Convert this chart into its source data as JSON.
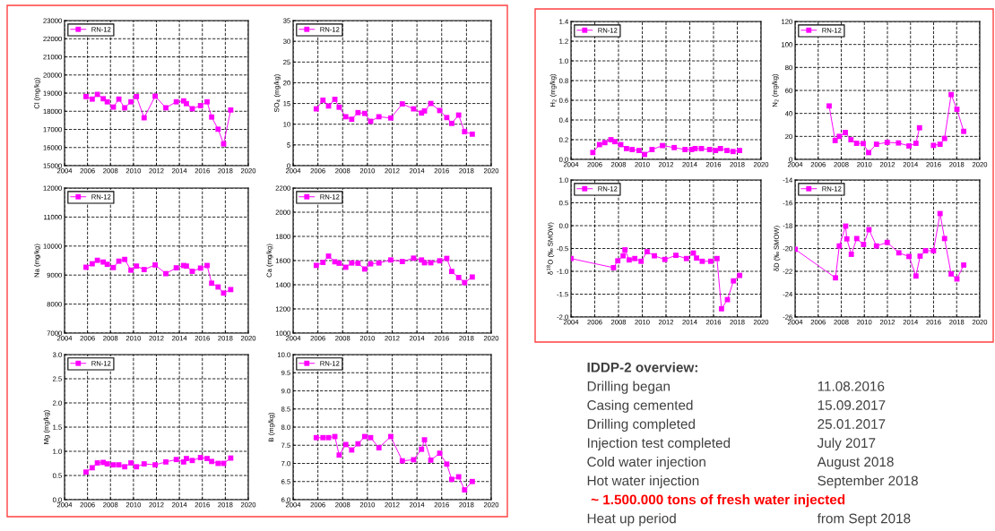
{
  "chart_data": [
    {
      "type": "line",
      "ylabel": "Cl (mg/kg)",
      "x": [
        2005.87,
        2006.41,
        2006.86,
        2007.37,
        2007.72,
        2008.25,
        2008.73,
        2009.24,
        2009.78,
        2010.26,
        2010.93,
        2011.89,
        2012.82,
        2013.73,
        2014.37,
        2014.61,
        2015.12,
        2015.84,
        2016.41,
        2016.81,
        2017.37,
        2017.85,
        2018.47
      ],
      "xlim": [
        2004,
        2020
      ],
      "xticks": [
        2004,
        2006,
        2008,
        2010,
        2012,
        2014,
        2016,
        2018,
        2020
      ],
      "ylim": [
        15000,
        23000
      ],
      "yticks": [
        15000,
        16000,
        17000,
        18000,
        19000,
        20000,
        21000,
        22000,
        23000
      ],
      "grid": true,
      "legend": "top left",
      "marker": "square",
      "series": [
        {
          "name": "RN-12",
          "color": "#ff00ff",
          "values": [
            18810,
            18670,
            18930,
            18690,
            18520,
            18230,
            18670,
            18190,
            18520,
            18810,
            17640,
            18830,
            18190,
            18520,
            18570,
            18420,
            18140,
            18310,
            18520,
            17680,
            17010,
            16200,
            18070
          ]
        }
      ]
    },
    {
      "type": "line",
      "ylabel": "SO$_{4}$ (mg/kg)",
      "x": [
        2005.87,
        2006.41,
        2006.86,
        2007.37,
        2007.72,
        2008.25,
        2008.73,
        2009.24,
        2009.78,
        2010.26,
        2010.93,
        2011.89,
        2012.82,
        2013.73,
        2014.37,
        2014.61,
        2015.12,
        2015.84,
        2016.41,
        2016.81,
        2017.37,
        2017.85,
        2018.47
      ],
      "xlim": [
        2004,
        2020
      ],
      "xticks": [
        2004,
        2006,
        2008,
        2010,
        2012,
        2014,
        2016,
        2018,
        2020
      ],
      "ylim": [
        0,
        35
      ],
      "yticks": [
        0,
        5,
        10,
        15,
        20,
        25,
        30,
        35
      ],
      "grid": true,
      "legend": "top left",
      "marker": "square",
      "series": [
        {
          "name": "RN-12",
          "color": "#ff00ff",
          "values": [
            13.7,
            15.8,
            14.4,
            16.0,
            14.1,
            11.8,
            11.2,
            12.8,
            12.6,
            10.7,
            11.8,
            11.5,
            14.9,
            13.7,
            12.7,
            13.2,
            15.0,
            13.3,
            11.6,
            10.2,
            12.2,
            8.2,
            7.6
          ]
        }
      ]
    },
    {
      "type": "line",
      "ylabel": "Na (mg/kg)",
      "x": [
        2005.87,
        2006.41,
        2006.86,
        2007.37,
        2007.72,
        2008.25,
        2008.73,
        2009.24,
        2009.78,
        2010.26,
        2010.93,
        2011.89,
        2012.82,
        2013.73,
        2014.37,
        2014.61,
        2015.12,
        2015.84,
        2016.41,
        2016.81,
        2017.37,
        2017.85,
        2018.47
      ],
      "xlim": [
        2004,
        2020
      ],
      "xticks": [
        2004,
        2006,
        2008,
        2010,
        2012,
        2014,
        2016,
        2018,
        2020
      ],
      "ylim": [
        7000,
        12000
      ],
      "yticks": [
        7000,
        8000,
        9000,
        10000,
        11000,
        12000
      ],
      "grid": true,
      "legend": "top left",
      "marker": "square",
      "series": [
        {
          "name": "RN-12",
          "color": "#ff00ff",
          "values": [
            9270,
            9390,
            9510,
            9450,
            9370,
            9260,
            9480,
            9540,
            9170,
            9310,
            9190,
            9350,
            9050,
            9250,
            9330,
            9310,
            9130,
            9240,
            9330,
            8720,
            8590,
            8380,
            8500
          ]
        }
      ]
    },
    {
      "type": "line",
      "ylabel": "Ca (mg/kg)",
      "x": [
        2005.87,
        2006.41,
        2006.86,
        2007.37,
        2007.72,
        2008.25,
        2008.73,
        2009.24,
        2009.78,
        2010.26,
        2010.93,
        2011.89,
        2012.82,
        2013.73,
        2014.37,
        2014.61,
        2015.12,
        2015.84,
        2016.41,
        2016.81,
        2017.37,
        2017.85,
        2018.47
      ],
      "xlim": [
        2004,
        2020
      ],
      "xticks": [
        2004,
        2006,
        2008,
        2010,
        2012,
        2014,
        2016,
        2018,
        2020
      ],
      "ylim": [
        1000,
        2200
      ],
      "yticks": [
        1000,
        1200,
        1400,
        1600,
        1800,
        2000,
        2200
      ],
      "grid": true,
      "legend": "top left",
      "marker": "square",
      "series": [
        {
          "name": "RN-12",
          "color": "#ff00ff",
          "values": [
            1560,
            1585,
            1637,
            1590,
            1578,
            1545,
            1580,
            1578,
            1530,
            1573,
            1580,
            1605,
            1592,
            1620,
            1605,
            1582,
            1582,
            1598,
            1618,
            1510,
            1460,
            1418,
            1464
          ]
        }
      ]
    },
    {
      "type": "line",
      "ylabel": "Mg (mg/kg)",
      "x": [
        2005.87,
        2006.41,
        2006.86,
        2007.37,
        2007.72,
        2008.25,
        2008.73,
        2009.24,
        2009.78,
        2010.26,
        2010.93,
        2011.89,
        2012.82,
        2013.73,
        2014.37,
        2014.61,
        2015.12,
        2015.84,
        2016.41,
        2016.81,
        2017.37,
        2017.85,
        2018.47
      ],
      "xlim": [
        2004,
        2020
      ],
      "xticks": [
        2004,
        2006,
        2008,
        2010,
        2012,
        2014,
        2016,
        2018,
        2020
      ],
      "ylim": [
        0,
        3
      ],
      "yticks": [
        {
          "value": 0,
          "label": "0.0"
        },
        {
          "value": 0.5,
          "label": "0.5"
        },
        {
          "value": 1,
          "label": "1.0"
        },
        {
          "value": 1.5,
          "label": "1.5"
        },
        {
          "value": 2,
          "label": "2.0"
        },
        {
          "value": 2.5,
          "label": "2.5"
        },
        {
          "value": 3,
          "label": "3.0"
        }
      ],
      "grid": true,
      "legend": "top left",
      "marker": "square",
      "series": [
        {
          "name": "RN-12",
          "color": "#ff00ff",
          "values": [
            0.57,
            0.66,
            0.76,
            0.77,
            0.74,
            0.72,
            0.72,
            0.68,
            0.76,
            0.68,
            0.74,
            0.72,
            0.78,
            0.83,
            0.78,
            0.85,
            0.81,
            0.87,
            0.85,
            0.79,
            0.75,
            0.75,
            0.86
          ]
        }
      ]
    },
    {
      "type": "line",
      "ylabel": "B (mg/kg)",
      "x": [
        2005.87,
        2006.41,
        2006.86,
        2007.37,
        2007.72,
        2008.25,
        2008.73,
        2009.24,
        2009.78,
        2010.26,
        2010.93,
        2011.89,
        2012.82,
        2013.73,
        2014.37,
        2014.61,
        2015.12,
        2015.84,
        2016.41,
        2016.81,
        2017.37,
        2017.85,
        2018.47
      ],
      "xlim": [
        2004,
        2020
      ],
      "xticks": [
        2004,
        2006,
        2008,
        2010,
        2012,
        2014,
        2016,
        2018,
        2020
      ],
      "ylim": [
        6,
        10
      ],
      "yticks": [
        {
          "value": 6,
          "label": "6.0"
        },
        {
          "value": 6.5,
          "label": "6.5"
        },
        {
          "value": 7,
          "label": "7.0"
        },
        {
          "value": 7.5,
          "label": "7.5"
        },
        {
          "value": 8,
          "label": "8.0"
        },
        {
          "value": 8.5,
          "label": "8.5"
        },
        {
          "value": 9,
          "label": "9.0"
        },
        {
          "value": 9.5,
          "label": "9.5"
        },
        {
          "value": 10,
          "label": "10.0"
        }
      ],
      "grid": true,
      "legend": "top left",
      "marker": "square",
      "series": [
        {
          "name": "RN-12",
          "color": "#ff00ff",
          "values": [
            7.71,
            7.71,
            7.71,
            7.74,
            7.23,
            7.52,
            7.37,
            7.54,
            7.74,
            7.71,
            7.43,
            7.74,
            7.07,
            7.1,
            7.39,
            7.65,
            7.09,
            7.28,
            6.98,
            6.56,
            6.63,
            6.27,
            6.5
          ]
        }
      ]
    },
    {
      "type": "line",
      "ylabel": "H$_{2}$ (mg/kg)",
      "xlim": [
        2004,
        2020
      ],
      "xticks": [
        2004,
        2006,
        2008,
        2010,
        2012,
        2014,
        2016,
        2018,
        2020
      ],
      "ylim": [
        0,
        1.4
      ],
      "yticks": [
        {
          "value": 0,
          "label": "0.0"
        },
        {
          "value": 0.2,
          "label": "0.2"
        },
        {
          "value": 0.4,
          "label": "0.4"
        },
        {
          "value": 0.6,
          "label": "0.6"
        },
        {
          "value": 0.8,
          "label": "0.8"
        },
        {
          "value": 1,
          "label": "1.0"
        },
        {
          "value": 1.2,
          "label": "1.2"
        },
        {
          "value": 1.4,
          "label": "1.4"
        }
      ],
      "grid": true,
      "legend": "top left",
      "marker": "square",
      "series": [
        {
          "name": "RN-12",
          "color": "#ff00ff",
          "x": [
            2005.84,
            2006.4,
            2006.85,
            2007.36,
            2007.69,
            2008.19,
            2008.67,
            2009.15,
            2009.73,
            2010.19,
            2010.82,
            2011.7,
            2012.69,
            2013.6,
            2014.15,
            2014.45,
            2014.98,
            2015.67,
            2016.17,
            2016.58,
            2017.13,
            2017.64,
            2018.19
          ],
          "values": [
            0.07,
            0.15,
            0.17,
            0.2,
            0.18,
            0.15,
            0.11,
            0.1,
            0.09,
            0.05,
            0.1,
            0.14,
            0.12,
            0.1,
            0.1,
            0.11,
            0.11,
            0.1,
            0.09,
            0.11,
            0.09,
            0.08,
            0.09
          ]
        }
      ]
    },
    {
      "type": "line",
      "ylabel": "N$_{2}$ (mg/kg)",
      "xlim": [
        2004,
        2020
      ],
      "xticks": [
        2004,
        2006,
        2008,
        2010,
        2012,
        2014,
        2016,
        2018,
        2020
      ],
      "ylim": [
        0,
        120
      ],
      "yticks": [
        0,
        20,
        40,
        60,
        80,
        100,
        120
      ],
      "grid": true,
      "legend": "top left",
      "marker": "square",
      "series": [
        {
          "name": "RN-12",
          "color": "#ff00ff",
          "x": [
            2006.95,
            2007.47,
            2007.83,
            2008.35,
            2008.84,
            2009.33,
            2009.9,
            2010.37,
            2011.05,
            2011.98,
            2012.96,
            2013.87,
            2014.47,
            2014.78,
            2015.4,
            2015.99,
            2016.56,
            2016.95,
            2017.52,
            2018.02,
            2018.61
          ],
          "values": [
            46.5,
            16.4,
            20,
            23.4,
            17.1,
            14,
            13.8,
            5.9,
            13.2,
            14.8,
            14.3,
            11.7,
            14,
            27.5,
            null,
            12.2,
            13.2,
            18.2,
            56.4,
            43.6,
            24.4
          ]
        }
      ]
    },
    {
      "type": "line",
      "ylabel": "δ$^{18}$O (‰ SMOW)",
      "xlim": [
        2004,
        2020
      ],
      "xticks": [
        2004,
        2006,
        2008,
        2010,
        2012,
        2014,
        2016,
        2018,
        2020
      ],
      "ylim": [
        -2,
        1
      ],
      "yticks": [
        {
          "value": -2,
          "label": "-2.0"
        },
        {
          "value": -1.5,
          "label": "-1.5"
        },
        {
          "value": -1,
          "label": "-1.0"
        },
        {
          "value": -0.5,
          "label": "-0.5"
        },
        {
          "value": 0,
          "label": "0.0"
        },
        {
          "value": 0.5,
          "label": "0.5"
        },
        {
          "value": 1,
          "label": "1.0"
        }
      ],
      "grid": true,
      "legend": "top left",
      "marker": "square",
      "series": [
        {
          "name": "RN-12",
          "color": "#ff00ff",
          "x": [
            2004,
            2007.58,
            2007.94,
            2008.39,
            2008.54,
            2008.9,
            2009.37,
            2009.9,
            2010.41,
            2011.02,
            2011.9,
            2012.83,
            2013.72,
            2014.3,
            2014.57,
            2015.05,
            2015.76,
            2016.29,
            2016.67,
            2017.17,
            2017.68,
            2018.2
          ],
          "values": [
            -0.72,
            -0.92,
            -0.77,
            -0.66,
            -0.53,
            -0.75,
            -0.72,
            -0.78,
            -0.57,
            -0.66,
            -0.74,
            -0.65,
            -0.72,
            -0.6,
            -0.71,
            -0.78,
            -0.78,
            -0.72,
            -1.82,
            -1.62,
            -1.21,
            -1.09
          ]
        }
      ]
    },
    {
      "type": "line",
      "ylabel": "δD (‰ SMOW)",
      "xlim": [
        2004,
        2020
      ],
      "xticks": [
        2004,
        2006,
        2008,
        2010,
        2012,
        2014,
        2016,
        2018,
        2020
      ],
      "ylim": [
        -26,
        -14
      ],
      "yticks": [
        -26,
        -24,
        -22,
        -20,
        -18,
        -16,
        -14
      ],
      "grid": true,
      "legend": "top left",
      "marker": "square",
      "series": [
        {
          "name": "RN-12",
          "color": "#ff00ff",
          "x": [
            2004,
            2007.5,
            2007.83,
            2008.38,
            2008.48,
            2008.87,
            2009.34,
            2009.93,
            2010.4,
            2011.05,
            2011.98,
            2012.99,
            2013.87,
            2014.47,
            2014.83,
            2015.3,
            2015.99,
            2016.56,
            2016.95,
            2017.52,
            2018.02,
            2018.61
          ],
          "values": [
            -20.07,
            -22.57,
            -19.78,
            -18.04,
            -19.16,
            -20.51,
            -19.13,
            -19.65,
            -18.35,
            -19.78,
            -19.47,
            -20.38,
            -20.7,
            -22.41,
            -20.67,
            -20.2,
            -20.2,
            -16.94,
            -19.13,
            -22.23,
            -22.67,
            -21.45
          ]
        }
      ]
    },
    {
      "type": "other",
      "title": "IDDP-2 overview:",
      "categories": [
        "Drilling began",
        "Casing cemented",
        "Drilling completed",
        "Injection test completed",
        "Cold water injection",
        "Hot water injection",
        "~ 1.500.000 tons of fresh water injected",
        "Heat up period"
      ],
      "value_labels": [
        "11.08.2016",
        "15.09.2017",
        "25.01.2017",
        "July 2017",
        "August 2018",
        "September 2018",
        null,
        "from Sept 2018"
      ],
      "colors": [
        "#404040",
        "#404040",
        "#404040",
        "#404040",
        "#404040",
        "#404040",
        "#ff0000",
        "#404040"
      ]
    }
  ]
}
